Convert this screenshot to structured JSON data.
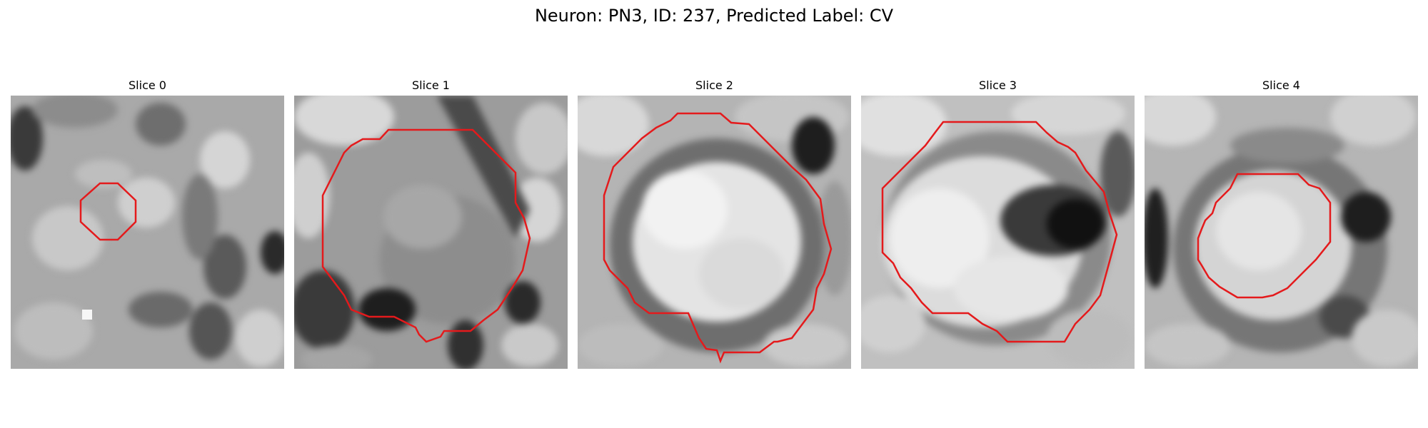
{
  "figure": {
    "title": "Neuron: PN3, ID: 237, Predicted Label: CV"
  },
  "panels": [
    {
      "title": "Slice 0",
      "image": "grainy-grayscale-microscopy",
      "contour_color": "#e41a1c"
    },
    {
      "title": "Slice 1",
      "image": "grayscale-microscopy-dark-membrane",
      "contour_color": "#e41a1c"
    },
    {
      "title": "Slice 2",
      "image": "grayscale-microscopy-bright-round-cell",
      "contour_color": "#e41a1c"
    },
    {
      "title": "Slice 3",
      "image": "grayscale-microscopy-dark-inclusion",
      "contour_color": "#e41a1c"
    },
    {
      "title": "Slice 4",
      "image": "grayscale-microscopy-small-cell",
      "contour_color": "#e41a1c"
    }
  ],
  "colors": {
    "contour": "#e41a1c",
    "background": "#ffffff"
  }
}
